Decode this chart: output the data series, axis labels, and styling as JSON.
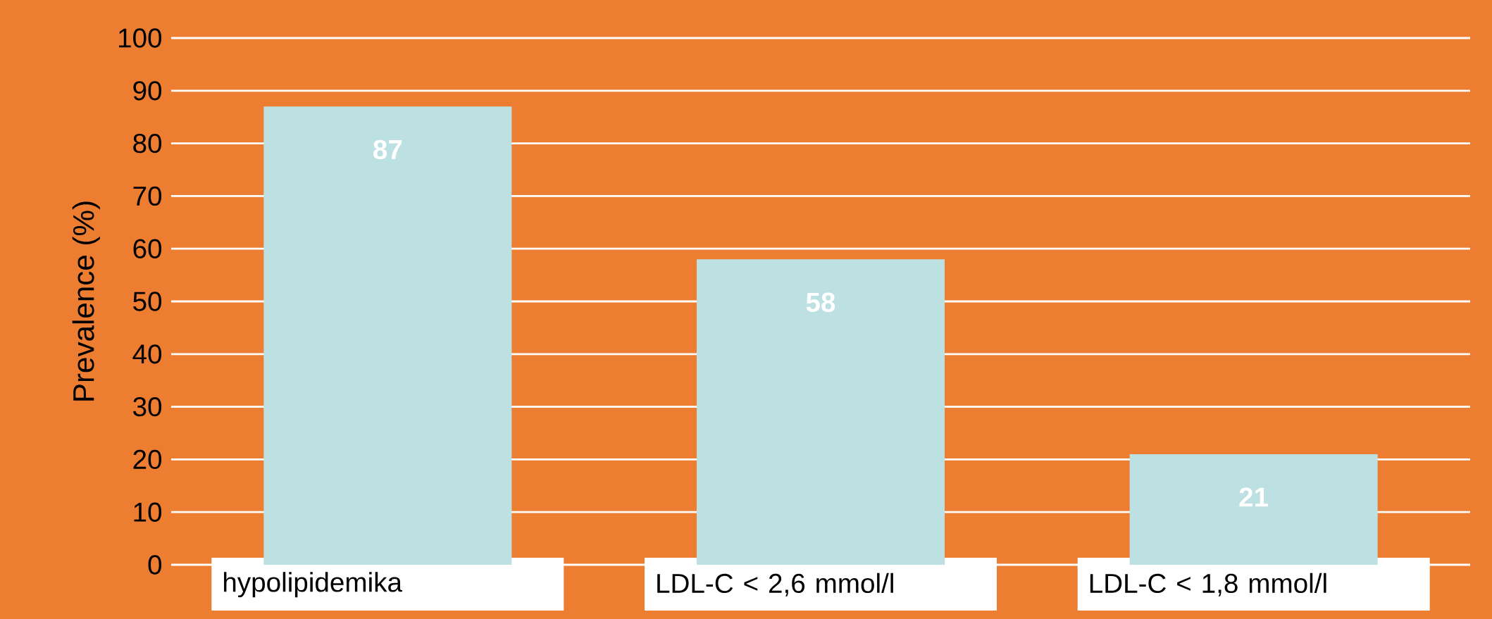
{
  "chart_data": {
    "type": "bar",
    "ylabel": "Prevalence (%)",
    "categories": [
      "hypolipidemika",
      "LDL-C < 2,6 mmol/l",
      "LDL-C < 1,8 mmol/l"
    ],
    "values": [
      87,
      58,
      21
    ],
    "color": "#bde0e2",
    "data_labels": true,
    "ylim": [
      0,
      100
    ],
    "yticks": [
      0,
      10,
      20,
      30,
      40,
      50,
      60,
      70,
      80,
      90,
      100
    ],
    "grid": "y"
  }
}
